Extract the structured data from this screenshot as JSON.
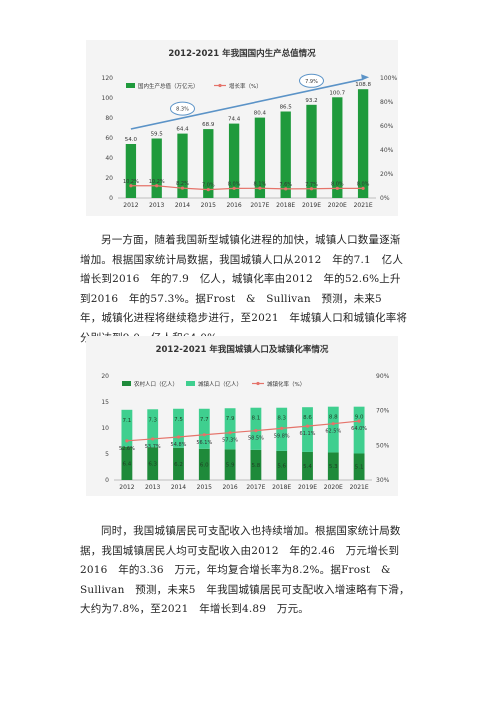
{
  "paragraphs": [
    "另一方面，随着我国新型城镇化进程的加快，城镇人口数量逐渐增加。根据国家统计局数据，我国城镇人口从2012　年的7.1　亿人增长到2016　年的7.9　亿人，城镇化率由2012　年的52.6%上升到2016　年的57.3%。据Frost　&　Sullivan　预测，未来5　年，城镇化进程将继续稳步进行，至2021　年城镇人口和城镇化率将分别达到9.0　亿人和64.0%。",
    "同时，我国城镇居民可支配收入也持续增加。根据国家统计局数据，我国城镇居民人均可支配收入由2012　年的2.46　万元增长到2016　年的3.36　万元，年均复合增长率为8.2%。据Frost　&　Sullivan　预测，未来5　年我国城镇居民可支配收入增速略有下滑，大约为7.8%，至2021　年增长到4.89　万元。"
  ],
  "chart_data": [
    {
      "type": "bar",
      "title": "2012-2021 年我国国内生产总值情况",
      "categories": [
        "2012",
        "2013",
        "2014",
        "2015",
        "2016",
        "2017E",
        "2018E",
        "2019E",
        "2020E",
        "2021E"
      ],
      "series": [
        {
          "name": "国内生产总值（万亿元）",
          "type": "bar",
          "axis": "left",
          "values": [
            54.0,
            59.5,
            64.4,
            68.9,
            74.4,
            80.4,
            86.5,
            93.2,
            100.7,
            108.8
          ],
          "labels": [
            "54.0",
            "59.5",
            "64.4",
            "68.9",
            "74.4",
            "80.4",
            "86.5",
            "93.2",
            "100.7",
            "108.8"
          ]
        },
        {
          "name": "增长率（%）",
          "type": "line",
          "axis": "right",
          "values": [
            10.2,
            10.2,
            8.2,
            7.0,
            8.0,
            8.1,
            7.6,
            7.7,
            8.0,
            8.0
          ],
          "labels": [
            "10.2%",
            "10.2%",
            "8.2%",
            "7.0%",
            "8.0%",
            "8.1%",
            "7.6%",
            "7.7%",
            "8.0%",
            "8.0%"
          ]
        }
      ],
      "annotations": [
        "8.3%",
        "7.9%"
      ],
      "ylim": [
        0,
        120
      ],
      "yticks": [
        "0",
        "20",
        "40",
        "60",
        "80",
        "100",
        "120"
      ],
      "y2lim": [
        0,
        100
      ],
      "y2ticks": [
        "0%",
        "20%",
        "40%",
        "60%",
        "80%",
        "100%"
      ],
      "legend": "top-left",
      "colors": {
        "bar": "#1f9a3c",
        "line": "#e5736a",
        "arrow": "#5b93c7"
      }
    },
    {
      "type": "bar",
      "title": "2012-2021 年我国城镇人口及城镇化率情况",
      "categories": [
        "2012",
        "2013",
        "2014",
        "2015",
        "2016",
        "2017E",
        "2018E",
        "2019E",
        "2020E",
        "2021E"
      ],
      "series": [
        {
          "name": "农村人口（亿人）",
          "type": "stacked-bar",
          "axis": "left",
          "values": [
            6.4,
            6.3,
            6.2,
            6.0,
            5.9,
            5.8,
            5.6,
            5.4,
            5.3,
            5.1
          ],
          "labels": [
            "6.4",
            "6.3",
            "6.2",
            "6.0",
            "5.9",
            "5.8",
            "5.6",
            "5.4",
            "5.3",
            "5.1"
          ]
        },
        {
          "name": "城镇人口（亿人）",
          "type": "stacked-bar",
          "axis": "left",
          "values": [
            7.1,
            7.3,
            7.5,
            7.7,
            7.9,
            8.1,
            8.3,
            8.6,
            8.8,
            9.0
          ],
          "labels": [
            "7.1",
            "7.3",
            "7.5",
            "7.7",
            "7.9",
            "8.1",
            "8.3",
            "8.6",
            "8.8",
            "9.0"
          ]
        },
        {
          "name": "城镇化率（%）",
          "type": "line",
          "axis": "right",
          "values": [
            52.6,
            53.7,
            54.8,
            56.1,
            57.3,
            58.5,
            59.8,
            61.1,
            62.5,
            64.0
          ],
          "labels": [
            "52.6%",
            "53.7%",
            "54.8%",
            "56.1%",
            "57.3%",
            "58.5%",
            "59.8%",
            "61.1%",
            "62.5%",
            "64.0%"
          ]
        }
      ],
      "ylim": [
        0,
        20
      ],
      "yticks": [
        "0",
        "5",
        "10",
        "15",
        "20"
      ],
      "y2lim": [
        30,
        90
      ],
      "y2ticks": [
        "30%",
        "50%",
        "70%",
        "90%"
      ],
      "legend": "top-left",
      "colors": {
        "rural": "#1e8a3a",
        "urban": "#3fcf8f",
        "line": "#e5736a"
      }
    }
  ]
}
